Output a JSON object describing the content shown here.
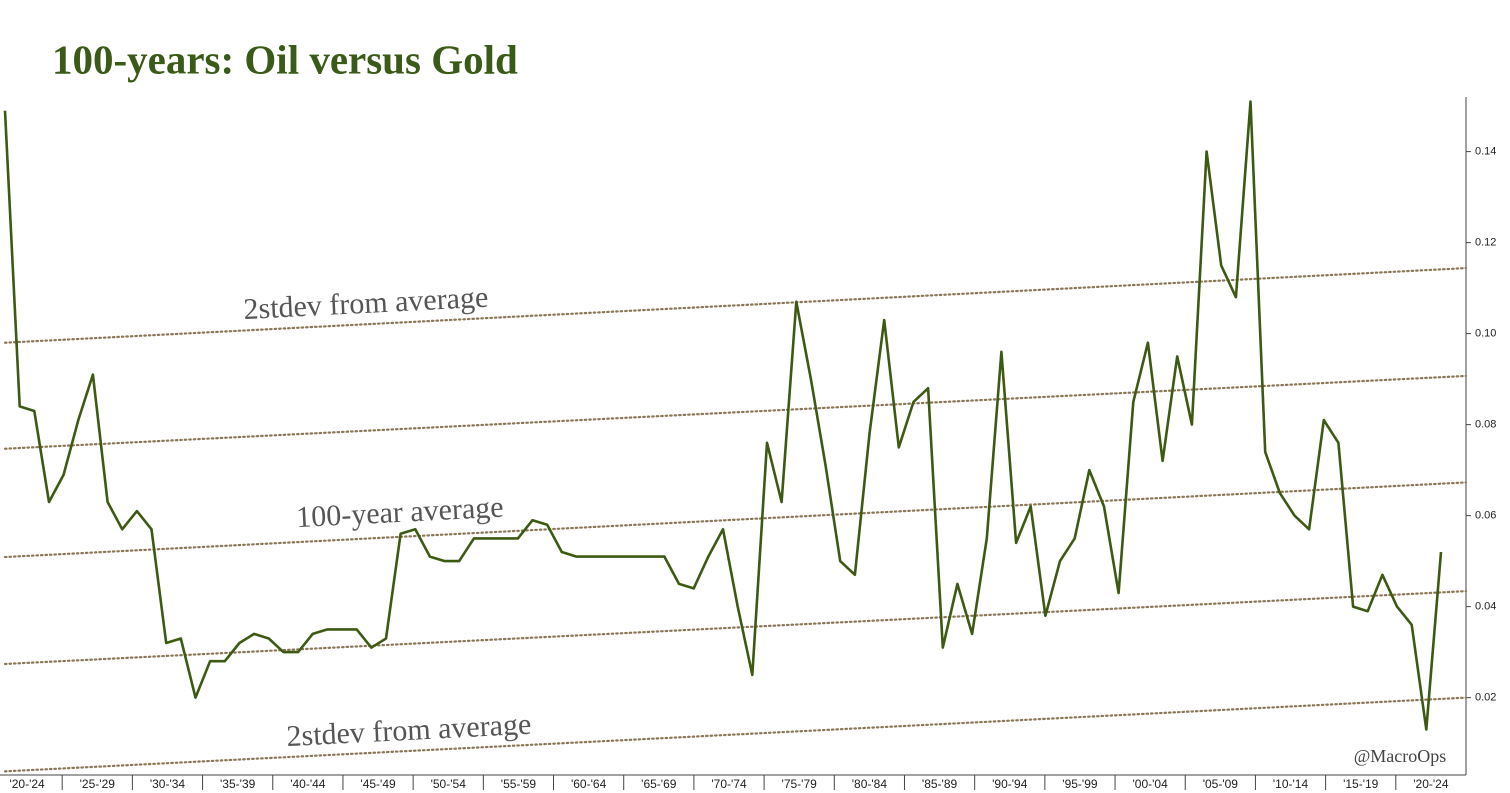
{
  "chart_data": {
    "type": "line",
    "title": "100-years: Oil versus Gold",
    "x_labels": [
      "'20-'24",
      "'25-'29",
      "'30-'34",
      "'35-'39",
      "'40-'44",
      "'45-'49",
      "'50-'54",
      "'55-'59",
      "'60-'64",
      "'65-'69",
      "'70-'74",
      "'75-'79",
      "'80-'84",
      "'85-'89",
      "'90-'94",
      "'95-'99",
      "'00-'04",
      "'05-'09",
      "'10-'14",
      "'15-'19",
      "'20-'24"
    ],
    "values": [
      0.149,
      0.084,
      0.083,
      0.063,
      0.069,
      0.081,
      0.091,
      0.063,
      0.057,
      0.061,
      0.057,
      0.032,
      0.033,
      0.02,
      0.028,
      0.028,
      0.032,
      0.034,
      0.033,
      0.03,
      0.03,
      0.034,
      0.035,
      0.035,
      0.035,
      0.031,
      0.033,
      0.056,
      0.057,
      0.051,
      0.05,
      0.05,
      0.055,
      0.055,
      0.055,
      0.055,
      0.059,
      0.058,
      0.052,
      0.051,
      0.051,
      0.051,
      0.051,
      0.051,
      0.051,
      0.051,
      0.045,
      0.044,
      0.051,
      0.057,
      0.04,
      0.025,
      0.076,
      0.063,
      0.107,
      0.09,
      0.071,
      0.05,
      0.047,
      0.078,
      0.103,
      0.075,
      0.085,
      0.088,
      0.031,
      0.045,
      0.034,
      0.055,
      0.096,
      0.054,
      0.062,
      0.038,
      0.05,
      0.055,
      0.07,
      0.062,
      0.043,
      0.085,
      0.098,
      0.072,
      0.095,
      0.08,
      0.14,
      0.115,
      0.108,
      0.151,
      0.074,
      0.065,
      0.06,
      0.057,
      0.081,
      0.076,
      0.04,
      0.039,
      0.047,
      0.04,
      0.036,
      0.013,
      0.052
    ],
    "color": "#3d5a12",
    "reference_lines": [
      {
        "start": 0.098,
        "end": 0.1144
      },
      {
        "start": 0.0747,
        "end": 0.0907
      },
      {
        "start": 0.0509,
        "end": 0.0673
      },
      {
        "start": 0.0274,
        "end": 0.0434
      },
      {
        "start": 0.0038,
        "end": 0.02
      }
    ],
    "reference_color": "#8a7656",
    "annotations": [
      "2stdev from average",
      "100-year average",
      "2stdev from average",
      "@MacroOps"
    ],
    "ylim": [
      0.003,
      0.152
    ],
    "yticks": [
      0.02,
      0.04,
      0.06,
      0.08,
      {
        "value": 0.1,
        "label": "0.10"
      },
      0.12,
      0.14
    ]
  }
}
